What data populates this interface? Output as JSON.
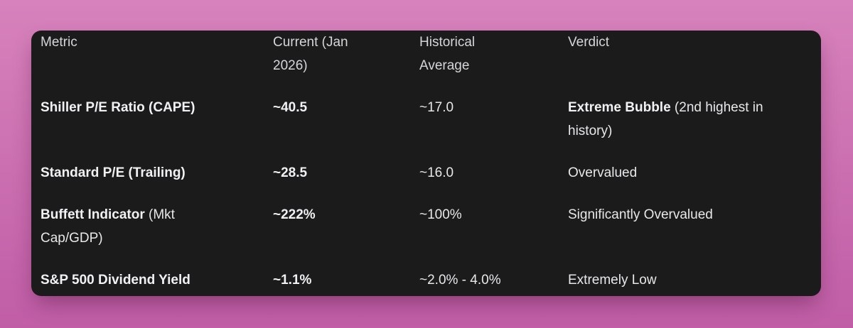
{
  "colors": {
    "bg_top": "#d782bc",
    "bg_bottom": "#c05da6",
    "card_bg": "#1b1b1b",
    "header_text": "#d6d5d9",
    "body_text": "#e8e7ea",
    "bold_text": "#f1f0f3"
  },
  "chart_data": {
    "type": "table",
    "columns": [
      "Metric",
      "Current (Jan 2026)",
      "Historical Average",
      "Verdict"
    ],
    "rows": [
      [
        "Shiller P/E Ratio (CAPE)",
        "~40.5",
        "~17.0",
        "Extreme Bubble (2nd highest in history)"
      ],
      [
        "Standard P/E (Trailing)",
        "~28.5",
        "~16.0",
        "Overvalued"
      ],
      [
        "Buffett Indicator (Mkt Cap/GDP)",
        "~222%",
        "~100%",
        "Significantly Overvalued"
      ],
      [
        "S&P 500 Dividend Yield",
        "~1.1%",
        "~2.0% - 4.0%",
        "Extremely Low"
      ]
    ]
  },
  "table": {
    "headers": {
      "metric": "Metric",
      "current": "Current (Jan\n2026)",
      "historical": "Historical\nAverage",
      "verdict": "Verdict"
    },
    "rows": [
      {
        "metric_bold": "Shiller P/E Ratio (CAPE)",
        "metric_rest": "",
        "current": "~40.5",
        "historical": "~17.0",
        "verdict_bold": "Extreme Bubble",
        "verdict_rest": " (2nd highest in\nhistory)"
      },
      {
        "metric_bold": "Standard P/E (Trailing)",
        "metric_rest": "",
        "current": "~28.5",
        "historical": "~16.0",
        "verdict_bold": "",
        "verdict_rest": "Overvalued"
      },
      {
        "metric_bold": "Buffett Indicator",
        "metric_rest": " (Mkt\nCap/GDP)",
        "current": "~222%",
        "historical": "~100%",
        "verdict_bold": "",
        "verdict_rest": "Significantly Overvalued"
      },
      {
        "metric_bold": "S&P 500 Dividend Yield",
        "metric_rest": "",
        "current": "~1.1%",
        "historical": "~2.0% - 4.0%",
        "verdict_bold": "",
        "verdict_rest": "Extremely Low"
      }
    ]
  }
}
